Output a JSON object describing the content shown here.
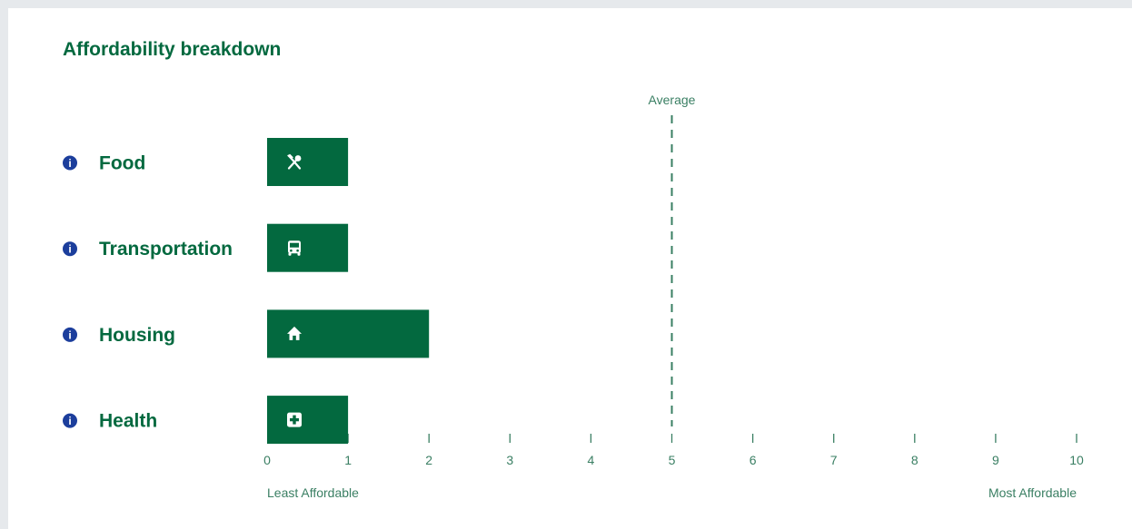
{
  "title": "Affordability breakdown",
  "colors": {
    "brand": "#03693f",
    "info": "#1c3e9c",
    "axis": "#3a7f63",
    "background": "#ffffff"
  },
  "chart_data": {
    "type": "bar",
    "orientation": "horizontal",
    "categories": [
      "Food",
      "Transportation",
      "Housing",
      "Health"
    ],
    "icons": [
      "utensils-icon",
      "bus-icon",
      "home-icon",
      "medical-plus-icon"
    ],
    "values": [
      1,
      1,
      2,
      1
    ],
    "xlim": [
      0,
      10
    ],
    "x_ticks": [
      "0",
      "1",
      "2",
      "3",
      "4",
      "5",
      "6",
      "7",
      "8",
      "9",
      "10"
    ],
    "reference_line": {
      "label": "Average",
      "value": 5,
      "style": "dashed"
    },
    "x_min_label": "Least Affordable",
    "x_max_label": "Most Affordable",
    "info_icon": "info-circle-icon"
  }
}
